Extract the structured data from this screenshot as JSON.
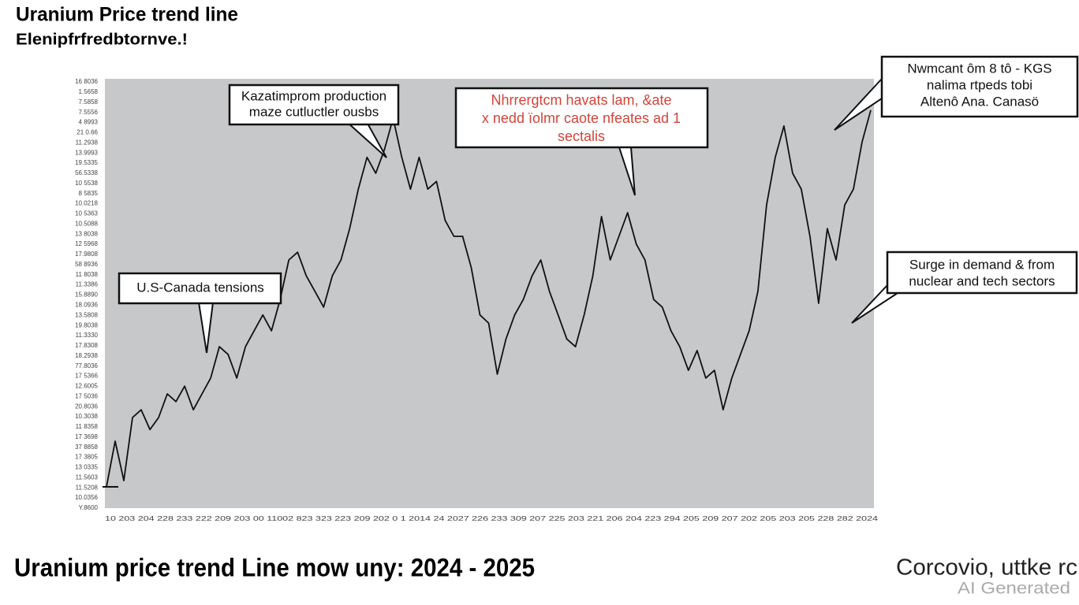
{
  "title": "Uranium Price trend line",
  "subtitle": "Elenipfrfredbtornve.!",
  "chart_data": {
    "type": "line",
    "color": "#111111",
    "ylim": [
      0,
      100
    ],
    "values": [
      5.0,
      15.6,
      6.4,
      21.1,
      22.9,
      18.3,
      21.1,
      26.6,
      24.8,
      28.4,
      22.9,
      26.6,
      30.3,
      37.6,
      35.8,
      30.3,
      37.6,
      41.3,
      45.0,
      41.3,
      48.6,
      57.8,
      59.6,
      54.1,
      50.5,
      46.8,
      54.1,
      57.8,
      65.1,
      74.3,
      81.7,
      78.0,
      83.5,
      90.8,
      81.7,
      74.3,
      81.7,
      74.3,
      76.1,
      67.0,
      63.3,
      63.3,
      56.0,
      45.0,
      43.1,
      31.2,
      39.4,
      45.0,
      48.6,
      54.1,
      57.8,
      50.5,
      45.0,
      39.4,
      37.6,
      45.0,
      54.1,
      67.9,
      57.8,
      63.3,
      68.8,
      61.5,
      57.8,
      48.6,
      46.8,
      41.3,
      37.6,
      32.1,
      36.7,
      30.3,
      32.1,
      22.9,
      30.3,
      35.8,
      41.3,
      50.5,
      70.6,
      81.7,
      89.0,
      78.0,
      74.3,
      63.3,
      47.7,
      65.1,
      57.8,
      70.6,
      74.3,
      85.3,
      92.7
    ],
    "y_tick_texts": [
      "16 8036",
      "1.5658",
      "7.5858",
      "7.5556",
      "4 8993",
      "21 0.66",
      "11.2938",
      "13.9993",
      "19.5335",
      "56.5338",
      "10 5538",
      "8 5835",
      "10.0218",
      "10 5363",
      "10.5088",
      "13 8038",
      "12 5968",
      "17.9808",
      "58 8936",
      "11 8038",
      "11.3386",
      "15.8890",
      "18.0936",
      "13.5808",
      "19.8038",
      "11.3330",
      "17.8308",
      "18.2938",
      "77.8036",
      "17 5366",
      "12.6005",
      "17 5036",
      "20.8036",
      "10.3038",
      "11 8358",
      "17 3698",
      "37 8858",
      "17 3805",
      "13 0335",
      "11.5603",
      "11.5208",
      "10.0356",
      "Y.8600"
    ],
    "x_axis_text": "10 203 204 228 233 222 209 203 00 11002 823 323 223 209 202 0 1 2014 24 2027 226 233 309 207 225 203 221 206 204 223 294 205 209 207 202 205 203 205 228 282 2024",
    "annotations": [
      {
        "lines": [
          "Kazatimprom production",
          "maze cutluctler ousbs"
        ]
      },
      {
        "lines": [
          "Nhrrergtcm havats lam, &ate",
          "x nedd ïolmr caote nfeates ad 1",
          "sectalis"
        ]
      },
      {
        "lines": [
          "Nwmcant ôm 8 tô - KGS",
          "nalima rtpeds tobi",
          "Altenô Ana. Canasö"
        ]
      },
      {
        "lines": [
          "U.S-Canada tensions"
        ]
      },
      {
        "lines": [
          "Surge in demand & from",
          "nuclear and tech sectors"
        ]
      }
    ]
  },
  "footer": {
    "caption": "Uranium price trend Line mow uny: 2024 - 2025",
    "brand": "Corcovio, uttke rc",
    "badge": "AI Generated"
  }
}
